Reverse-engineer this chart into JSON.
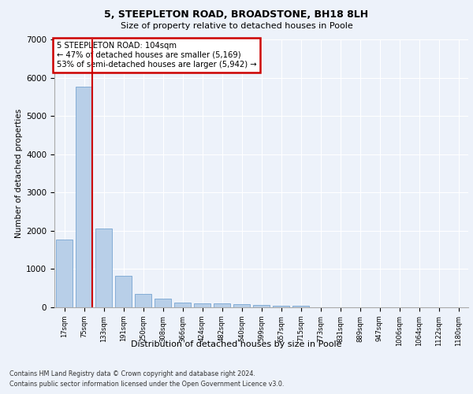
{
  "title1": "5, STEEPLETON ROAD, BROADSTONE, BH18 8LH",
  "title2": "Size of property relative to detached houses in Poole",
  "xlabel": "Distribution of detached houses by size in Poole",
  "ylabel": "Number of detached properties",
  "categories": [
    "17sqm",
    "75sqm",
    "133sqm",
    "191sqm",
    "250sqm",
    "308sqm",
    "366sqm",
    "424sqm",
    "482sqm",
    "540sqm",
    "599sqm",
    "657sqm",
    "715sqm",
    "773sqm",
    "831sqm",
    "889sqm",
    "947sqm",
    "1006sqm",
    "1064sqm",
    "1122sqm",
    "1180sqm"
  ],
  "values": [
    1780,
    5760,
    2050,
    820,
    340,
    220,
    120,
    100,
    95,
    80,
    70,
    50,
    50,
    0,
    0,
    0,
    0,
    0,
    0,
    0,
    0
  ],
  "bar_color": "#b8cfe8",
  "bar_edge_color": "#6699cc",
  "highlight_color": "#cc0000",
  "highlight_index": 1,
  "red_line_x": 1.42,
  "annotation_line1": "5 STEEPLETON ROAD: 104sqm",
  "annotation_line2": "← 47% of detached houses are smaller (5,169)",
  "annotation_line3": "53% of semi-detached houses are larger (5,942) →",
  "annotation_box_color": "#cc0000",
  "ylim": [
    0,
    7000
  ],
  "yticks": [
    0,
    1000,
    2000,
    3000,
    4000,
    5000,
    6000,
    7000
  ],
  "footer1": "Contains HM Land Registry data © Crown copyright and database right 2024.",
  "footer2": "Contains public sector information licensed under the Open Government Licence v3.0.",
  "bg_color": "#edf2fa",
  "plot_bg": "#edf2fa",
  "grid_color": "#ffffff"
}
